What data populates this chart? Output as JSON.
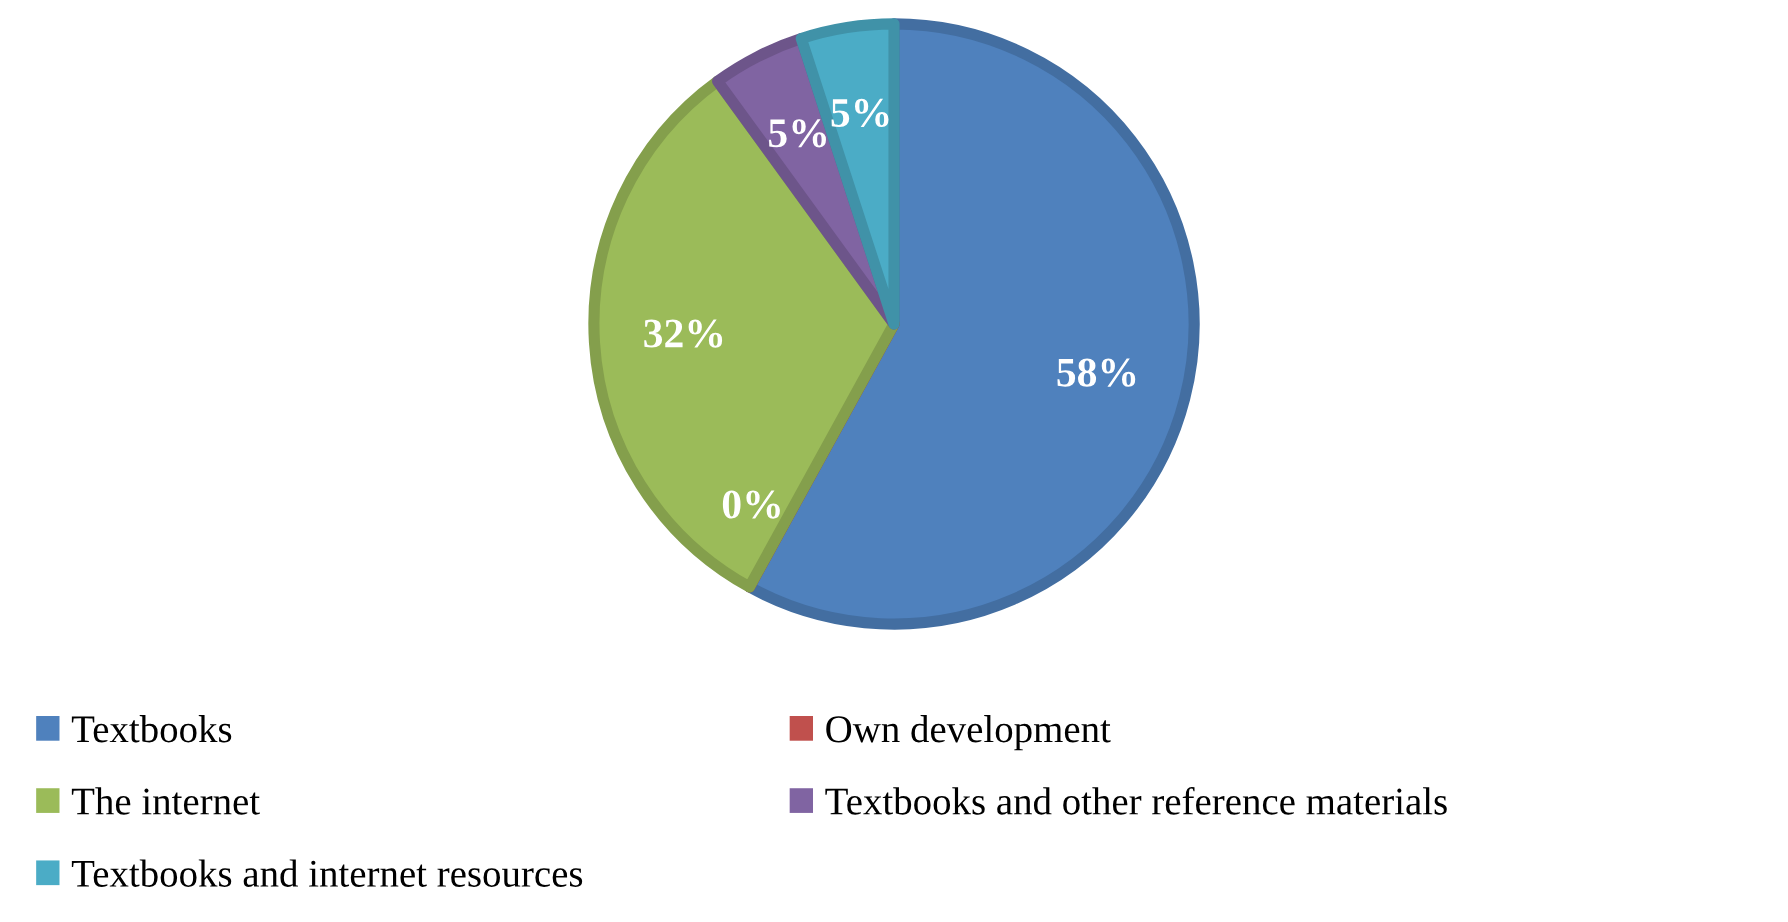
{
  "chart_data": {
    "type": "pie",
    "categories": [
      "Textbooks",
      "Own development",
      "The internet",
      "Textbooks and other reference materials",
      "Textbooks and internet resources"
    ],
    "values": [
      58,
      0,
      32,
      5,
      5
    ],
    "colors": [
      "#4f81bd",
      "#c0504d",
      "#9bbb59",
      "#8064a2",
      "#4bacc6"
    ],
    "value_labels": [
      "58%",
      "0%",
      "32%",
      "5%",
      "5%"
    ],
    "legend": "bottom"
  }
}
